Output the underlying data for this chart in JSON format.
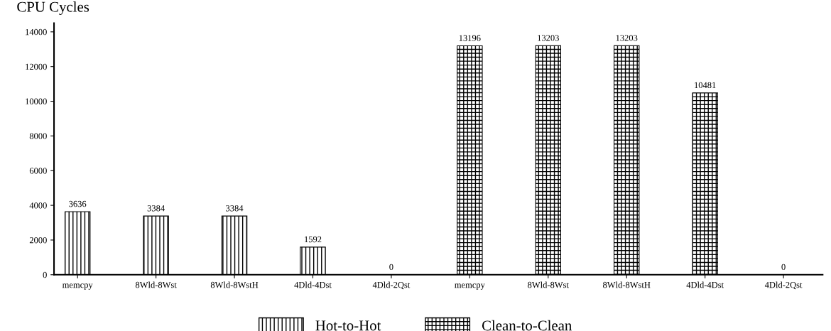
{
  "chart_data": {
    "type": "bar",
    "ylabel": "CPU Cycles",
    "categories": [
      "memcpy",
      "8Wld-8Wst",
      "8Wld-8WstH",
      "4Dld-4Dst",
      "4Dld-2Qst",
      "memcpy",
      "8Wld-8Wst",
      "8Wld-8WstH",
      "4Dld-4Dst",
      "4Dld-2Qst"
    ],
    "series": [
      {
        "name": "Hot-to-Hot",
        "color": "#000000",
        "values": [
          3636,
          3384,
          3384,
          1592,
          0,
          null,
          null,
          null,
          null,
          null
        ]
      },
      {
        "name": "Clean-to-Clean",
        "color": "#000000",
        "values": [
          null,
          null,
          null,
          null,
          null,
          13196,
          13203,
          13203,
          10481,
          0
        ]
      }
    ],
    "ylim": [
      0,
      14500
    ],
    "yticks": [
      0,
      2000,
      4000,
      6000,
      8000,
      10000,
      12000,
      14000
    ],
    "data_labels": true,
    "grid": false,
    "legend": "bottom"
  }
}
